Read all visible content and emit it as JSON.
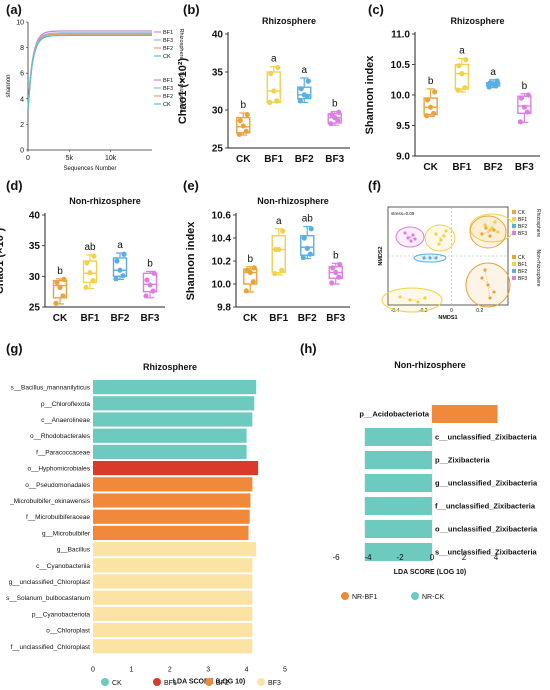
{
  "colors": {
    "CK": "#E8A33D",
    "BF1": "#F2D14D",
    "BF2": "#5AAEE6",
    "BF3": "#DD7FE0",
    "teal": "#6CCABF",
    "red": "#D93A2B",
    "orange": "#F08A3A",
    "yellow": "#FBE3A3"
  },
  "panels": {
    "a": {
      "label": "(a)"
    },
    "b": {
      "label": "(b)"
    },
    "c": {
      "label": "(c)"
    },
    "d": {
      "label": "(d)"
    },
    "e": {
      "label": "(e)"
    },
    "f": {
      "label": "(f)"
    },
    "g": {
      "label": "(g)"
    },
    "h": {
      "label": "(h)"
    }
  },
  "chart_data": [
    {
      "id": "a",
      "type": "line",
      "xlabel": "Sequences Number",
      "ylabel": "shannon",
      "xticks": [
        "0",
        "5k",
        "10k"
      ],
      "yticks": [
        "0",
        "2",
        "4",
        "6",
        "8",
        "10"
      ],
      "xlim": [
        0,
        15000
      ],
      "ylim": [
        0,
        10
      ],
      "legend_groups": [
        {
          "title": "Rhizosphere",
          "items": [
            "BF1",
            "BF3",
            "BF2",
            "CK"
          ]
        },
        {
          "title": "Non-rhizosphere",
          "items": [
            "BF1",
            "BF3",
            "BF2",
            "CK"
          ]
        }
      ],
      "series": [
        {
          "name": "BF1",
          "plateau": 9.3
        },
        {
          "name": "BF3",
          "plateau": 9.15
        },
        {
          "name": "BF2",
          "plateau": 9.05
        },
        {
          "name": "CK",
          "plateau": 8.95
        }
      ]
    },
    {
      "id": "b",
      "type": "box",
      "title": "Rhizosphere",
      "ylabel": "Chao1 (×10²)",
      "ylim": [
        25,
        40
      ],
      "yticks": [
        "25",
        "30",
        "35",
        "40"
      ],
      "categories": [
        "CK",
        "BF1",
        "BF2",
        "BF3"
      ],
      "boxes": [
        {
          "min": 26.7,
          "q1": 27.0,
          "median": 27.8,
          "q3": 29.0,
          "max": 29.6,
          "letter": "b",
          "points": [
            26.8,
            27.2,
            27.9,
            28.6,
            29.4
          ]
        },
        {
          "min": 31.0,
          "q1": 31.0,
          "median": 32.5,
          "q3": 35.0,
          "max": 35.7,
          "letter": "a",
          "points": [
            31.0,
            31.2,
            32.5,
            34.8,
            35.6
          ]
        },
        {
          "min": 31.0,
          "q1": 31.5,
          "median": 32.0,
          "q3": 33.0,
          "max": 34.2,
          "letter": "a",
          "points": [
            31.2,
            31.8,
            32.0,
            32.8,
            33.8
          ]
        },
        {
          "min": 28.0,
          "q1": 28.3,
          "median": 29.0,
          "q3": 29.5,
          "max": 29.8,
          "letter": "b",
          "points": [
            28.2,
            28.6,
            29.0,
            29.4,
            29.7
          ]
        }
      ]
    },
    {
      "id": "c",
      "type": "box",
      "title": "Rhizosphere",
      "ylabel": "Shannon index",
      "ylim": [
        9.0,
        11.0
      ],
      "yticks": [
        "9.0",
        "9.5",
        "10.0",
        "10.5",
        "11.0"
      ],
      "categories": [
        "CK",
        "BF1",
        "BF2",
        "BF3"
      ],
      "boxes": [
        {
          "min": 9.65,
          "q1": 9.68,
          "median": 9.8,
          "q3": 9.95,
          "max": 10.1,
          "letter": "b",
          "points": [
            9.66,
            9.7,
            9.8,
            9.92,
            10.05
          ]
        },
        {
          "min": 10.05,
          "q1": 10.1,
          "median": 10.35,
          "q3": 10.5,
          "max": 10.6,
          "letter": "a",
          "points": [
            10.08,
            10.12,
            10.35,
            10.48,
            10.58
          ]
        },
        {
          "min": 10.12,
          "q1": 10.15,
          "median": 10.18,
          "q3": 10.2,
          "max": 10.25,
          "letter": "a",
          "points": [
            10.13,
            10.15,
            10.18,
            10.2,
            10.23
          ]
        },
        {
          "min": 9.55,
          "q1": 9.7,
          "median": 9.82,
          "q3": 9.98,
          "max": 10.02,
          "letter": "b",
          "points": [
            9.56,
            9.72,
            9.8,
            9.95,
            10.0
          ]
        }
      ]
    },
    {
      "id": "d",
      "type": "box",
      "title": "Non-rhizosphere",
      "ylabel": "Chao1 (×10²)",
      "ylim": [
        25,
        40
      ],
      "yticks": [
        "25",
        "30",
        "35",
        "40"
      ],
      "categories": [
        "CK",
        "BF1",
        "BF2",
        "BF3"
      ],
      "boxes": [
        {
          "min": 25.5,
          "q1": 26.5,
          "median": 28.5,
          "q3": 29.3,
          "max": 29.6,
          "letter": "b",
          "points": [
            25.6,
            26.8,
            28.2,
            29.0,
            29.5
          ]
        },
        {
          "min": 28.0,
          "q1": 29.0,
          "median": 30.5,
          "q3": 32.5,
          "max": 33.5,
          "letter": "ab",
          "points": [
            28.2,
            29.3,
            30.6,
            32.2,
            33.3
          ]
        },
        {
          "min": 29.5,
          "q1": 30.0,
          "median": 31.0,
          "q3": 33.0,
          "max": 33.8,
          "letter": "a",
          "points": [
            29.6,
            30.1,
            31.0,
            32.5,
            33.6
          ]
        },
        {
          "min": 26.5,
          "q1": 27.5,
          "median": 28.7,
          "q3": 30.5,
          "max": 30.8,
          "letter": "b",
          "points": [
            26.8,
            27.6,
            28.6,
            29.4,
            30.5
          ]
        }
      ]
    },
    {
      "id": "e",
      "type": "box",
      "title": "Non-rhizosphere",
      "ylabel": "Shannon index",
      "ylim": [
        9.8,
        10.6
      ],
      "yticks": [
        "9.8",
        "10.0",
        "10.2",
        "10.4",
        "10.6"
      ],
      "categories": [
        "CK",
        "BF1",
        "BF2",
        "BF3"
      ],
      "boxes": [
        {
          "min": 9.93,
          "q1": 10.0,
          "median": 10.1,
          "q3": 10.13,
          "max": 10.15,
          "letter": "b",
          "points": [
            9.94,
            10.02,
            10.1,
            10.12,
            10.14
          ]
        },
        {
          "min": 10.08,
          "q1": 10.1,
          "median": 10.3,
          "q3": 10.42,
          "max": 10.48,
          "letter": "a",
          "points": [
            10.09,
            10.12,
            10.3,
            10.3,
            10.46
          ]
        },
        {
          "min": 10.22,
          "q1": 10.25,
          "median": 10.32,
          "q3": 10.42,
          "max": 10.5,
          "letter": "ab",
          "points": [
            10.23,
            10.26,
            10.31,
            10.4,
            10.48
          ]
        },
        {
          "min": 10.0,
          "q1": 10.05,
          "median": 10.1,
          "q3": 10.15,
          "max": 10.18,
          "letter": "b",
          "points": [
            10.01,
            10.06,
            10.1,
            10.14,
            10.17
          ]
        }
      ]
    },
    {
      "id": "f",
      "type": "scatter",
      "xlabel": "NMDS1",
      "ylabel": "NMDS2",
      "annotation": "stress=0.09",
      "xticks": [
        "-0.4",
        "-0.2",
        "0",
        "0.2"
      ],
      "xlim": [
        -0.45,
        0.4
      ],
      "ylim": [
        -0.25,
        0.25
      ],
      "legend_groups": [
        {
          "title": "Rhizosphere",
          "items": [
            "CK",
            "BF1",
            "BF2",
            "BF3"
          ]
        },
        {
          "title": "Non-rhizosphere",
          "items": [
            "CK",
            "BF1",
            "BF2",
            "BF3"
          ]
        }
      ]
    },
    {
      "id": "g",
      "type": "bar",
      "orientation": "horizontal",
      "title": "Rhizosphere",
      "xlabel": "LDA SCORE (LOG 10)",
      "xlim": [
        0,
        5
      ],
      "xticks": [
        "0",
        "1",
        "2",
        "3",
        "4",
        "5"
      ],
      "legend": [
        {
          "name": "CK",
          "color": "#6CCABF"
        },
        {
          "name": "BF1",
          "color": "#D93A2B"
        },
        {
          "name": "BF2",
          "color": "#F08A3A"
        },
        {
          "name": "BF3",
          "color": "#FBE3A3"
        }
      ],
      "bars": [
        {
          "label": "s__Bacillus_mannanilyticus",
          "value": 4.25,
          "group": "CK"
        },
        {
          "label": "p__Chloroflexota",
          "value": 4.2,
          "group": "CK"
        },
        {
          "label": "c__Anaerolineae",
          "value": 4.15,
          "group": "CK"
        },
        {
          "label": "o__Rhodobacterales",
          "value": 4.0,
          "group": "CK"
        },
        {
          "label": "f__Paracoccaceae",
          "value": 4.0,
          "group": "CK"
        },
        {
          "label": "o__Hyphomicrobiales",
          "value": 4.3,
          "group": "BF1"
        },
        {
          "label": "o__Pseudomonadales",
          "value": 4.15,
          "group": "BF2"
        },
        {
          "label": "_Microbulbifer_okinawensis",
          "value": 4.1,
          "group": "BF2"
        },
        {
          "label": "f__Microbulbiferaceae",
          "value": 4.08,
          "group": "BF2"
        },
        {
          "label": "g__Microbulbifer",
          "value": 4.05,
          "group": "BF2"
        },
        {
          "label": "g__Bacillus",
          "value": 4.25,
          "group": "BF3"
        },
        {
          "label": "c__Cyanobacteriia",
          "value": 4.15,
          "group": "BF3"
        },
        {
          "label": "g__unclassified_Chloroplast",
          "value": 4.15,
          "group": "BF3"
        },
        {
          "label": "s__Solanum_bulbocastanum",
          "value": 4.15,
          "group": "BF3"
        },
        {
          "label": "p__Cyanobacteriota",
          "value": 4.15,
          "group": "BF3"
        },
        {
          "label": "o__Chloroplast",
          "value": 4.15,
          "group": "BF3"
        },
        {
          "label": "f__unclassified_Chloroplast",
          "value": 4.15,
          "group": "BF3"
        }
      ]
    },
    {
      "id": "h",
      "type": "bar",
      "orientation": "horizontal",
      "title": "Non-rhizosphere",
      "xlabel": "LDA SCORE (LOG 10)",
      "xlim": [
        -6,
        6
      ],
      "xticks": [
        "-6",
        "-4",
        "-2",
        "0",
        "2",
        "4"
      ],
      "legend": [
        {
          "name": "NR-BF1",
          "color": "#F08A3A"
        },
        {
          "name": "NR-CK",
          "color": "#6CCABF"
        }
      ],
      "bars": [
        {
          "label": "p__Acidobacteriota",
          "value": 4.1,
          "group": "NR-BF1"
        },
        {
          "label": "c__unclassified_Zixibacteria",
          "value": -4.2,
          "group": "NR-CK"
        },
        {
          "label": "p__Zixibacteria",
          "value": -4.2,
          "group": "NR-CK"
        },
        {
          "label": "g__unclassified_Zixibacteria",
          "value": -4.2,
          "group": "NR-CK"
        },
        {
          "label": "f__unclassified_Zixibacteria",
          "value": -4.2,
          "group": "NR-CK"
        },
        {
          "label": "o__unclassified_Zixibacteria",
          "value": -4.2,
          "group": "NR-CK"
        },
        {
          "label": "s__unclassified_Zixibacteria",
          "value": -4.2,
          "group": "NR-CK"
        }
      ]
    }
  ]
}
